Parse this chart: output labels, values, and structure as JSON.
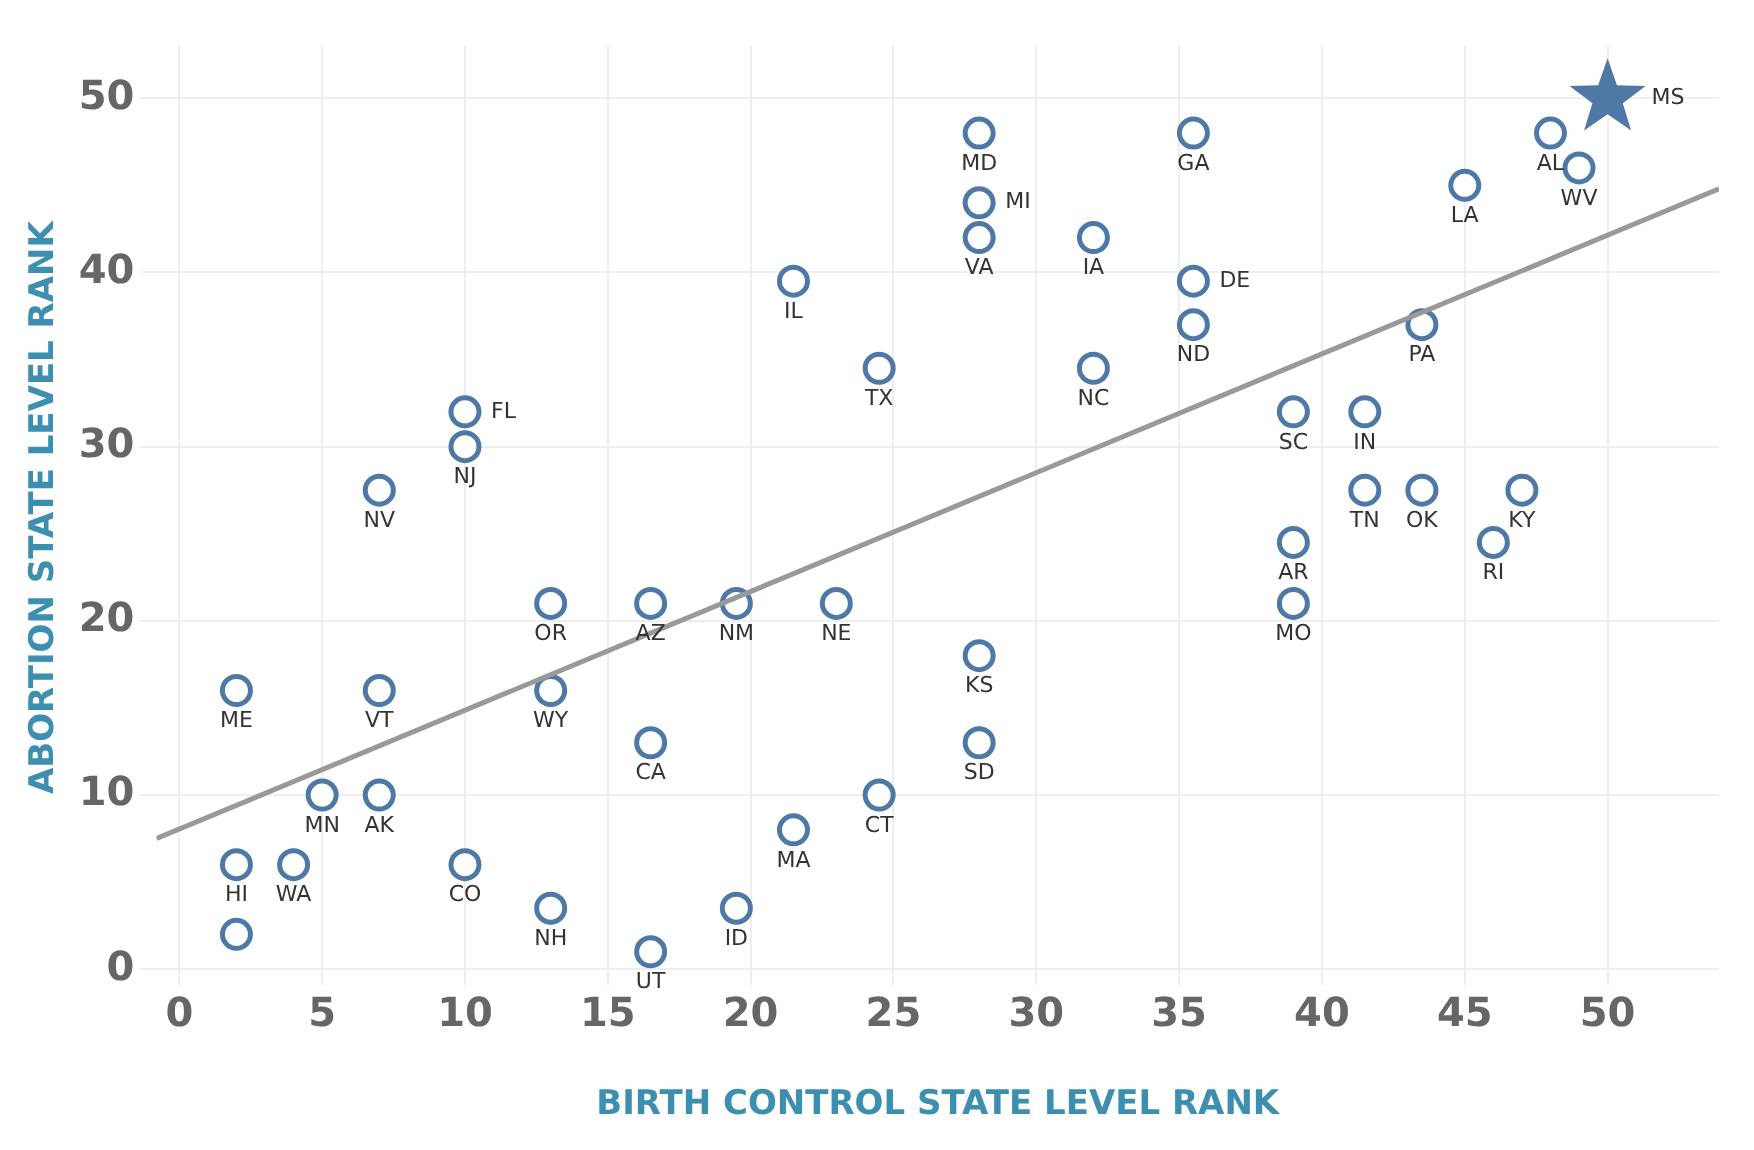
{
  "chart_data": {
    "type": "scatter",
    "xlabel": "BIRTH CONTROL STATE LEVEL RANK",
    "ylabel": "ABORTION STATE LEVEL RANK",
    "xlim": [
      -0.8,
      53.9
    ],
    "ylim": [
      0,
      53
    ],
    "xticks": [
      0,
      5,
      10,
      15,
      20,
      25,
      30,
      35,
      40,
      45,
      50
    ],
    "yticks": [
      0,
      10,
      20,
      30,
      40,
      50
    ],
    "grid": true,
    "legend": false,
    "series": [
      {
        "type": "line",
        "color": "#999999",
        "marker": "none",
        "line_style": "solid",
        "x": [
          -0.8,
          53.9
        ],
        "values": [
          7.5,
          44.8
        ]
      },
      {
        "color": "#4e79a7",
        "marker": "circle",
        "x": [
          2,
          2,
          2,
          4,
          5,
          7,
          7,
          7,
          10,
          10,
          10,
          13,
          13,
          13,
          16.5,
          16.5,
          16.5,
          19.5,
          19.5,
          21.5,
          21.5,
          23,
          24.5,
          24.5,
          28,
          28,
          28,
          28,
          28,
          32,
          32,
          35.5,
          35.5,
          35.5,
          39,
          39,
          39,
          41.5,
          41.5,
          43.5,
          43.5,
          45,
          46,
          47,
          48,
          49
        ],
        "values": [
          16,
          6,
          2,
          6,
          10,
          10,
          16,
          27.5,
          6,
          32,
          30,
          3.5,
          16,
          21,
          13,
          21,
          1,
          21,
          3.5,
          8,
          39.5,
          21,
          34.5,
          10,
          48,
          44,
          42,
          18,
          13,
          42,
          34.5,
          48,
          39.5,
          37,
          32,
          24.5,
          21,
          32,
          27.5,
          27.5,
          37,
          45,
          24.5,
          27.5,
          48,
          46
        ]
      },
      {
        "type": "scatter",
        "color": "#4e79a7",
        "marker": "star",
        "x": [
          50
        ],
        "values": [
          50
        ]
      }
    ],
    "annotations": [
      {
        "text": "ME",
        "x": 2,
        "y": 16
      },
      {
        "text": "HI",
        "x": 2,
        "y": 6
      },
      {
        "text": "WA",
        "x": 4,
        "y": 6
      },
      {
        "text": "MN",
        "x": 5,
        "y": 10
      },
      {
        "text": "AK",
        "x": 7,
        "y": 10
      },
      {
        "text": "VT",
        "x": 7,
        "y": 16
      },
      {
        "text": "NV",
        "x": 7,
        "y": 27.5
      },
      {
        "text": "CO",
        "x": 10,
        "y": 6
      },
      {
        "text": "FL",
        "x": 10,
        "y": 32
      },
      {
        "text": "NJ",
        "x": 10,
        "y": 30
      },
      {
        "text": "NH",
        "x": 13,
        "y": 3.5
      },
      {
        "text": "WY",
        "x": 13,
        "y": 16
      },
      {
        "text": "OR",
        "x": 13,
        "y": 21
      },
      {
        "text": "CA",
        "x": 16.5,
        "y": 13
      },
      {
        "text": "AZ",
        "x": 16.5,
        "y": 21
      },
      {
        "text": "UT",
        "x": 16.5,
        "y": 1
      },
      {
        "text": "NM",
        "x": 19.5,
        "y": 21
      },
      {
        "text": "ID",
        "x": 19.5,
        "y": 3.5
      },
      {
        "text": "MA",
        "x": 21.5,
        "y": 8
      },
      {
        "text": "IL",
        "x": 21.5,
        "y": 39.5
      },
      {
        "text": "NE",
        "x": 23,
        "y": 21
      },
      {
        "text": "TX",
        "x": 24.5,
        "y": 34.5
      },
      {
        "text": "CT",
        "x": 24.5,
        "y": 10
      },
      {
        "text": "MD",
        "x": 28,
        "y": 48
      },
      {
        "text": "MI",
        "x": 28,
        "y": 44
      },
      {
        "text": "VA",
        "x": 28,
        "y": 42
      },
      {
        "text": "KS",
        "x": 28,
        "y": 18
      },
      {
        "text": "SD",
        "x": 28,
        "y": 13
      },
      {
        "text": "IA",
        "x": 32,
        "y": 42
      },
      {
        "text": "NC",
        "x": 32,
        "y": 34.5
      },
      {
        "text": "GA",
        "x": 35.5,
        "y": 48
      },
      {
        "text": "DE",
        "x": 35.5,
        "y": 39.5
      },
      {
        "text": "ND",
        "x": 35.5,
        "y": 37
      },
      {
        "text": "SC",
        "x": 39,
        "y": 32
      },
      {
        "text": "AR",
        "x": 39,
        "y": 24.5
      },
      {
        "text": "MO",
        "x": 39,
        "y": 21
      },
      {
        "text": "IN",
        "x": 41.5,
        "y": 32
      },
      {
        "text": "TN",
        "x": 41.5,
        "y": 27.5
      },
      {
        "text": "OK",
        "x": 43.5,
        "y": 27.5
      },
      {
        "text": "PA",
        "x": 43.5,
        "y": 37
      },
      {
        "text": "LA",
        "x": 45,
        "y": 45
      },
      {
        "text": "RI",
        "x": 46,
        "y": 24.5
      },
      {
        "text": "KY",
        "x": 47,
        "y": 27.5
      },
      {
        "text": "AL",
        "x": 48,
        "y": 48
      },
      {
        "text": "WV",
        "x": 49,
        "y": 46
      },
      {
        "text": "MS",
        "x": 50,
        "y": 50
      }
    ]
  }
}
